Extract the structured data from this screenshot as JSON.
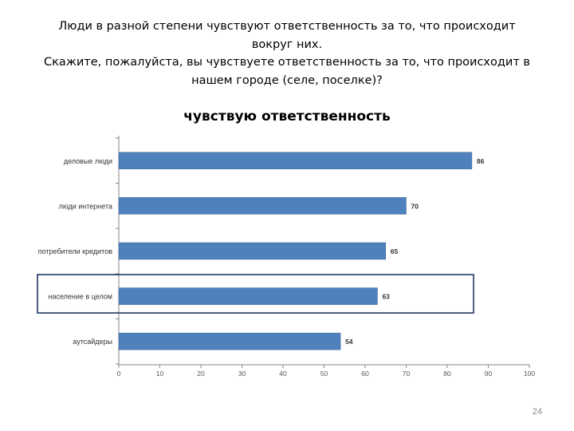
{
  "heading": {
    "line1": "Люди в разной степени чувствуют ответственность за то, что происходит",
    "line2": "вокруг них.",
    "line3": "Скажите, пожалуйста,  вы чувствуете ответственность за то, что происходит  в",
    "line4": "нашем городе (селе, поселке)?"
  },
  "page_number": "24",
  "chart_data": {
    "type": "bar",
    "orientation": "horizontal",
    "title": "чувствую ответственность",
    "categories": [
      "деловые люди",
      "люди интернета",
      "потребители кредитов",
      "население в целом",
      "аутсайдеры"
    ],
    "values": [
      86,
      70,
      65,
      63,
      54
    ],
    "data_labels": [
      "86",
      "70",
      "65",
      "63",
      "54"
    ],
    "xlim": [
      0,
      100
    ],
    "x_ticks": [
      "0",
      "10",
      "20",
      "30",
      "40",
      "50",
      "60",
      "70",
      "80",
      "90",
      "100"
    ],
    "grid": false,
    "legend": "none",
    "highlighted_category": "население в целом",
    "colors": {
      "bar": "#4F81BD",
      "bar_edge": "#3A6699",
      "highlight_box": "#1F3864",
      "axis": "#868686"
    }
  }
}
